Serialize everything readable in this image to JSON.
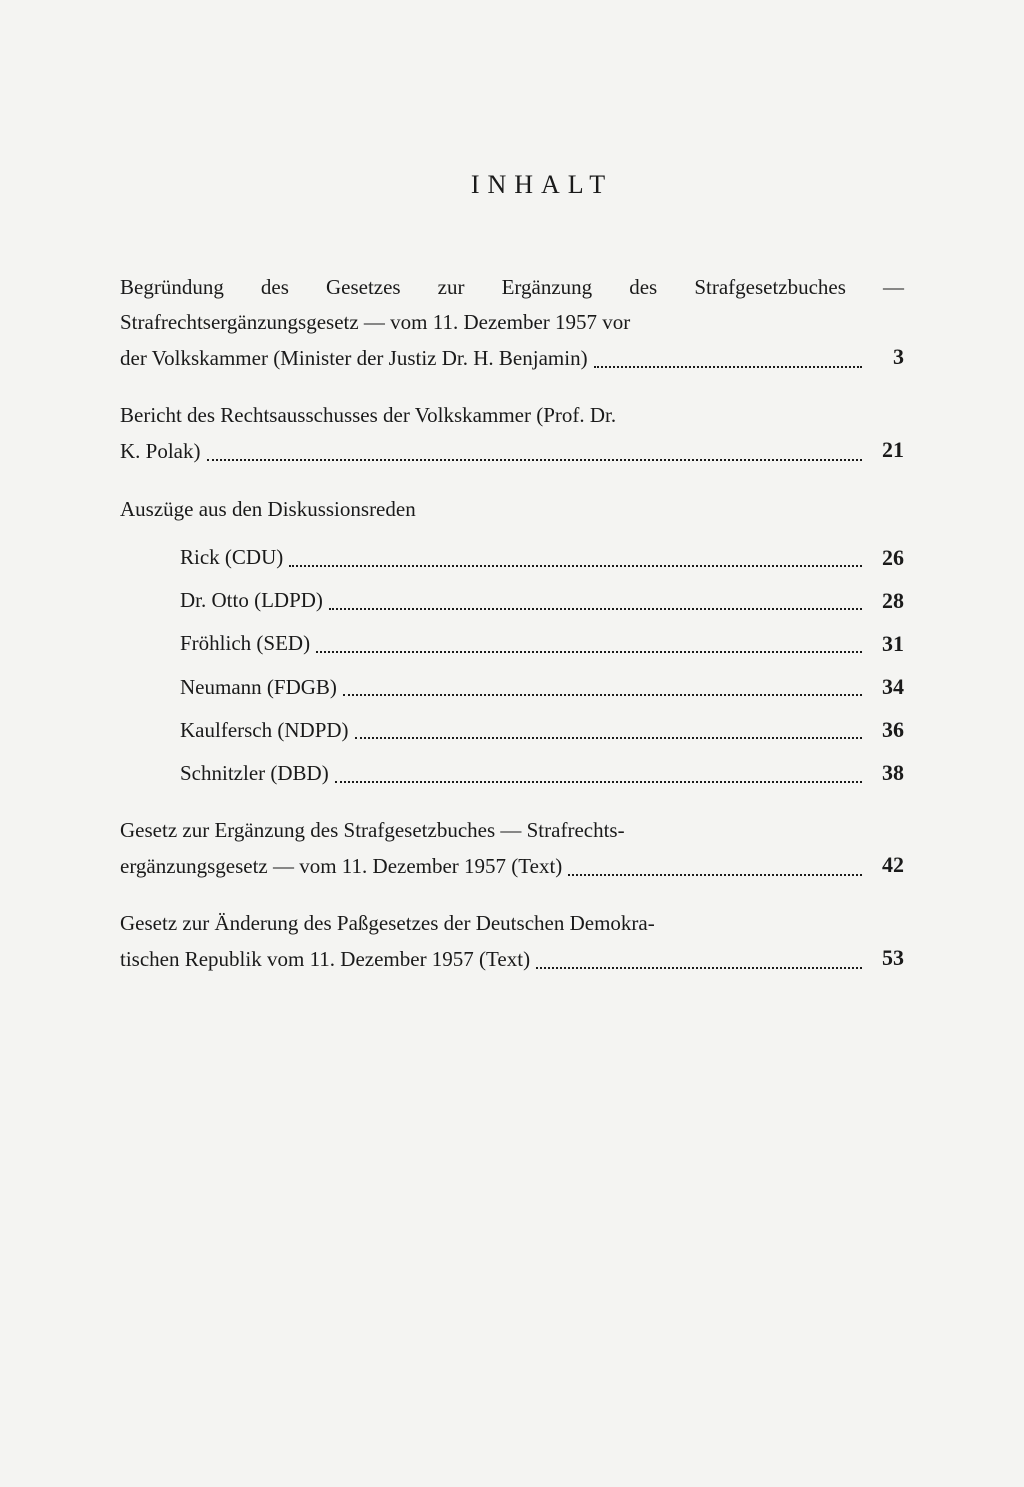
{
  "title": "INHALT",
  "entries": [
    {
      "type": "multiline",
      "lines_before": "Begründung des Gesetzes zur Ergänzung des Strafgesetzbuches — Strafrechtsergänzungsgesetz — vom 11. Dezember 1957 vor",
      "last_line": "der Volkskammer (Minister der Justiz Dr. H. Benjamin)",
      "page": "3"
    },
    {
      "type": "multiline_gap",
      "lines_before": "Bericht des Rechtsausschusses der Volkskammer (Prof. Dr.",
      "last_line": "K. Polak)",
      "page": "21"
    },
    {
      "type": "section",
      "text": "Auszüge aus den Diskussionsreden"
    },
    {
      "type": "sub",
      "text": "Rick (CDU)",
      "page": "26"
    },
    {
      "type": "sub",
      "text": "Dr. Otto (LDPD)",
      "page": "28"
    },
    {
      "type": "sub",
      "text": "Fröhlich (SED)",
      "page": "31"
    },
    {
      "type": "sub",
      "text": "Neumann (FDGB)",
      "page": "34"
    },
    {
      "type": "sub",
      "text": "Kaulfersch (NDPD)",
      "page": "36"
    },
    {
      "type": "sub",
      "text": "Schnitzler (DBD)",
      "page": "38"
    },
    {
      "type": "multiline_gap",
      "lines_before": "Gesetz zur Ergänzung des Strafgesetzbuches — Strafrechts-",
      "last_line": "ergänzungsgesetz — vom 11. Dezember 1957 (Text)",
      "page": "42"
    },
    {
      "type": "multiline_gap",
      "lines_before": "Gesetz zur Änderung des Paßgesetzes der Deutschen Demokra-",
      "last_line": "tischen Republik vom 11. Dezember 1957 (Text)",
      "page": "53"
    }
  ]
}
